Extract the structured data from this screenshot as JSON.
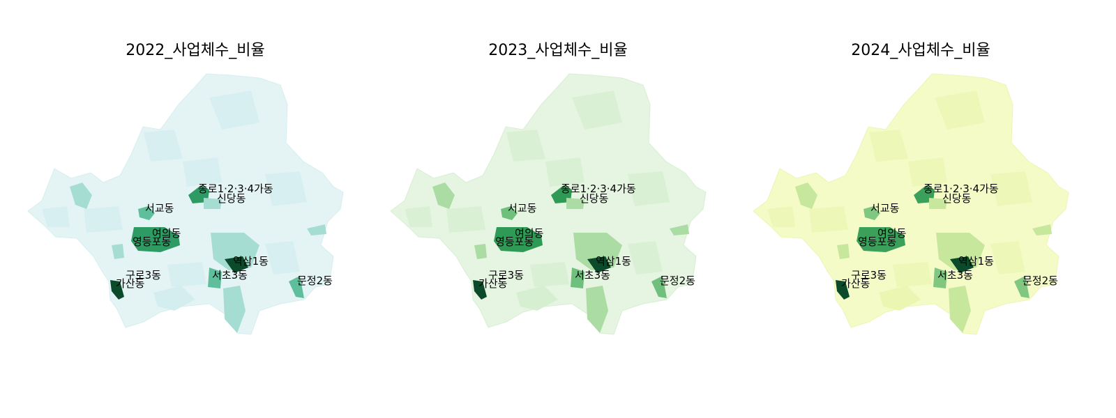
{
  "maps": [
    {
      "title": "2022_사업체수_비율",
      "palette": {
        "base": "#e4f4f5",
        "alt": "#d4eef0",
        "mid": "#a6ddd2",
        "accent": "#5fbf9c",
        "strong": "#2e9a64",
        "darkest": "#0b4a2a"
      }
    },
    {
      "title": "2023_사업체수_비율",
      "palette": {
        "base": "#e6f5e1",
        "alt": "#d6efd1",
        "mid": "#abdca3",
        "accent": "#6fc07c",
        "strong": "#2f9a55",
        "darkest": "#0b4a2a"
      }
    },
    {
      "title": "2024_사업체수_비율",
      "palette": {
        "base": "#f5fbc7",
        "alt": "#ebf6b3",
        "mid": "#c6e79c",
        "accent": "#80c882",
        "strong": "#3aa05a",
        "darkest": "#0b4a2a"
      }
    }
  ],
  "labels": {
    "jongno": "종로1·2·3·4가동",
    "sindang": "신당동",
    "seogyo": "서교동",
    "yeouido": "여의동",
    "yeongdeungpo": "영등포동",
    "yeoksam": "역삼1동",
    "guro3": "구로3동",
    "seocho3": "서초3동",
    "gasan": "가산동",
    "munjeong2": "문정2동"
  }
}
